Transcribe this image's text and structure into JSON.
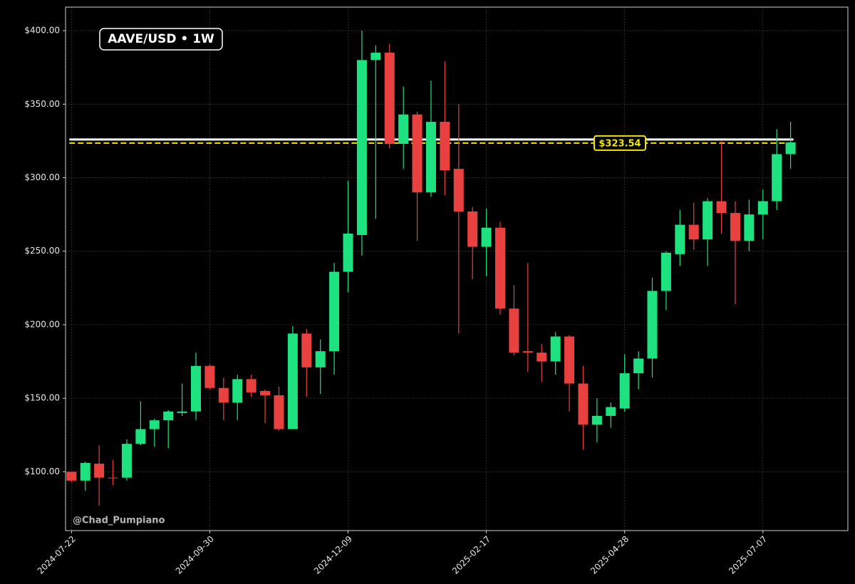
{
  "chart_data": {
    "type": "candlestick",
    "title": "AAVE/USD • 1W",
    "watermark": "@Chad_Pumpiano",
    "up_color": "#1de27f",
    "down_color": "#e8413f",
    "grid": true,
    "x": [
      "2024-07-22",
      "2024-07-29",
      "2024-08-05",
      "2024-08-12",
      "2024-08-19",
      "2024-08-26",
      "2024-09-02",
      "2024-09-09",
      "2024-09-16",
      "2024-09-23",
      "2024-09-30",
      "2024-10-07",
      "2024-10-14",
      "2024-10-21",
      "2024-10-28",
      "2024-11-04",
      "2024-11-11",
      "2024-11-18",
      "2024-11-25",
      "2024-12-02",
      "2024-12-09",
      "2024-12-16",
      "2024-12-23",
      "2024-12-30",
      "2025-01-06",
      "2025-01-13",
      "2025-01-20",
      "2025-01-27",
      "2025-02-03",
      "2025-02-10",
      "2025-02-17",
      "2025-02-24",
      "2025-03-03",
      "2025-03-10",
      "2025-03-17",
      "2025-03-24",
      "2025-03-31",
      "2025-04-07",
      "2025-04-14",
      "2025-04-21",
      "2025-04-28",
      "2025-05-05",
      "2025-05-12",
      "2025-05-19",
      "2025-05-26",
      "2025-06-02",
      "2025-06-09",
      "2025-06-16",
      "2025-06-23",
      "2025-06-30",
      "2025-07-07",
      "2025-07-14",
      "2025-07-21"
    ],
    "open": [
      100,
      94,
      105.5,
      96,
      96,
      119,
      129,
      135,
      140,
      141,
      172,
      157,
      147,
      163,
      155,
      152,
      129,
      194,
      171,
      182,
      236,
      261,
      380,
      385,
      323,
      343,
      290,
      338,
      306,
      277,
      253,
      266,
      211,
      182,
      181,
      175,
      192,
      160,
      132,
      138,
      143,
      167,
      177,
      223,
      248,
      268,
      258,
      284,
      276,
      257,
      275,
      284,
      316
    ],
    "high": [
      100,
      107,
      118,
      108,
      122,
      148,
      136,
      142,
      160,
      181,
      173,
      164,
      166,
      166,
      156,
      158,
      199,
      197,
      190,
      242,
      298,
      400,
      390,
      391,
      362,
      345,
      366,
      379,
      350,
      280,
      279,
      270,
      227,
      242,
      187,
      195,
      193,
      172,
      150,
      147,
      180,
      182,
      232,
      250,
      278,
      283,
      286,
      325,
      284,
      285,
      292,
      333,
      338
    ],
    "low": [
      93,
      87,
      77,
      91,
      94,
      118,
      117,
      116,
      138,
      135,
      156,
      135,
      135,
      151,
      133,
      128,
      129,
      151,
      153,
      166,
      222,
      247,
      272,
      320,
      306,
      257,
      287,
      288,
      194,
      231,
      233,
      207,
      179,
      168,
      161,
      166,
      141,
      115,
      120,
      130,
      141,
      156,
      164,
      210,
      240,
      251,
      240,
      262,
      214,
      250,
      258,
      278,
      306
    ],
    "close": [
      94,
      106,
      96,
      95.5,
      119,
      129,
      135,
      141,
      141,
      172,
      157,
      147,
      163,
      154,
      152,
      129,
      194,
      171,
      182,
      236,
      262,
      380,
      385,
      323,
      343,
      290,
      338,
      305,
      277,
      253,
      266,
      211,
      181,
      181,
      175,
      192,
      160,
      132,
      138,
      144,
      167,
      177,
      223,
      249,
      268,
      258,
      284,
      276,
      257,
      275,
      284,
      316,
      324
    ],
    "ylim": [
      60,
      416
    ],
    "yticks": [
      {
        "value": 100,
        "label": "$100.00"
      },
      {
        "value": 150,
        "label": "$150.00"
      },
      {
        "value": 200,
        "label": "$200.00"
      },
      {
        "value": 250,
        "label": "$250.00"
      },
      {
        "value": 300,
        "label": "$300.00"
      },
      {
        "value": 350,
        "label": "$350.00"
      },
      {
        "value": 400,
        "label": "$400.00"
      }
    ],
    "xlim": [
      "2024-07-19",
      "2025-08-19"
    ],
    "xticks": [
      "2024-07-22",
      "2024-09-30",
      "2024-12-09",
      "2025-02-17",
      "2025-04-28",
      "2025-07-07"
    ],
    "level_line": {
      "value": 326,
      "color": "#ffffff"
    },
    "price_line": {
      "value": 323.54,
      "label": "$323.54",
      "color": "#f2e600"
    }
  }
}
